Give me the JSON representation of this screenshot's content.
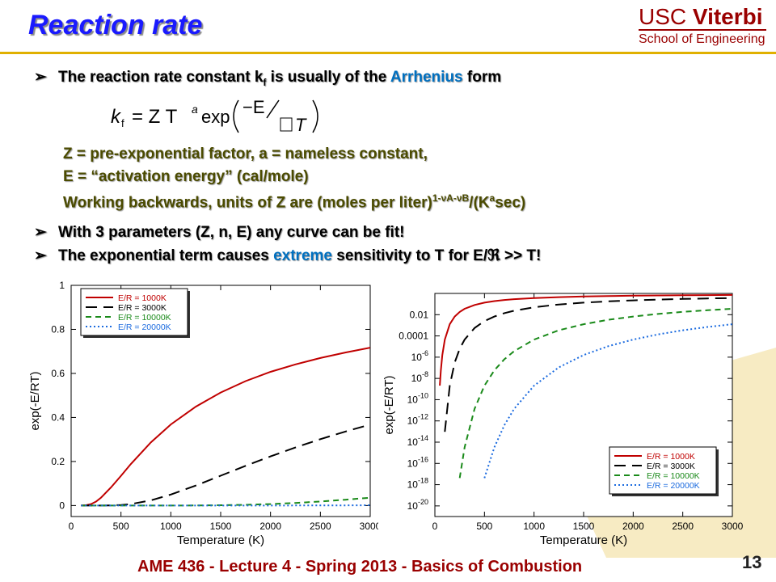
{
  "slide": {
    "title": "Reaction rate",
    "logo": {
      "usc": "USC",
      "viterbi": "Viterbi",
      "school": "School of Engineering"
    },
    "bullet1": {
      "pre": "The reaction rate constant k",
      "sub": "f",
      "mid": " is usually of the ",
      "highlight": "Arrhenius",
      "post": " form"
    },
    "equation": {
      "lhs": "k",
      "lhs_sub": "f",
      "eq": "= Z T",
      "a": "a",
      "exp": "exp",
      "num": "−E",
      "den": "T"
    },
    "line1": "Z = pre-exponential factor, a = nameless constant,",
    "line2": "E = “activation energy” (cal/mole)",
    "line3": {
      "pre": "Working backwards, units of Z are (moles per liter)",
      "sup": "1-νA-νB",
      "mid": "/(K",
      "sup2": "a",
      "post": "sec)"
    },
    "bullet2": "With 3 parameters (Z, n, E) any curve can be fit!",
    "bullet3": {
      "pre": "The exponential term causes ",
      "highlight": "extreme",
      "post": " sensitivity to T for E/ℜ >> T!"
    },
    "footer": "AME 436 - Lecture 4 - Spring 2013 - Basics of Combustion",
    "page_number": "13",
    "colors": {
      "title": "#1a1aff",
      "highlight": "#0070c0",
      "footer": "#9a0000",
      "rule": "#e0b000",
      "s1000": "#c00000",
      "s3000": "#000000",
      "s10000": "#1a8a1a",
      "s20000": "#1a6adf"
    }
  },
  "chart_data": [
    {
      "type": "line",
      "xlabel": "Temperature (K)",
      "ylabel": "exp(-E/RT)",
      "xlim": [
        0,
        3000
      ],
      "ylim": [
        -0.05,
        1.0
      ],
      "yscale": "linear",
      "xticks": [
        0,
        500,
        1000,
        1500,
        2000,
        2500,
        3000
      ],
      "yticks": [
        0,
        0.2,
        0.4,
        0.6,
        0.8,
        1
      ],
      "ytick_labels": [
        "0",
        "0.2",
        "0.4",
        "0.6",
        "0.8",
        "1"
      ],
      "legend": "top-left",
      "x": [
        100,
        150,
        200,
        250,
        300,
        400,
        500,
        600,
        800,
        1000,
        1250,
        1500,
        1750,
        2000,
        2250,
        2500,
        2750,
        3000
      ],
      "series": [
        {
          "name": "E/R = 1000K",
          "color": "#c00000",
          "dash": "",
          "values": [
            5e-05,
            0.0013,
            0.0067,
            0.018,
            0.036,
            0.082,
            0.135,
            0.189,
            0.287,
            0.368,
            0.449,
            0.513,
            0.565,
            0.607,
            0.641,
            0.67,
            0.695,
            0.717
          ]
        },
        {
          "name": "E/R = 3000K",
          "color": "#000000",
          "dash": "14,8",
          "values": [
            0.0,
            0.0,
            0.0,
            0.0,
            5e-05,
            0.00055,
            0.0025,
            0.0067,
            0.0235,
            0.0498,
            0.0907,
            0.1353,
            0.1801,
            0.2231,
            0.2636,
            0.3012,
            0.3359,
            0.3679
          ]
        },
        {
          "name": "E/R = 10000K",
          "color": "#1a8a1a",
          "dash": "7,5",
          "values": [
            0.0,
            0.0,
            0.0,
            0.0,
            0.0,
            0.0,
            0.0,
            0.0,
            4e-06,
            4.5e-05,
            0.00034,
            0.00127,
            0.0033,
            0.0067,
            0.0117,
            0.0183,
            0.0263,
            0.0357
          ]
        },
        {
          "name": "E/R = 20000K",
          "color": "#1a6adf",
          "dash": "2,3",
          "values": [
            0.0,
            0.0,
            0.0,
            0.0,
            0.0,
            0.0,
            0.0,
            0.0,
            0.0,
            0.0,
            0.0,
            1.6e-06,
            1.1e-05,
            4.5e-05,
            0.00014,
            0.00034,
            0.00069,
            0.00127
          ]
        }
      ]
    },
    {
      "type": "line",
      "xlabel": "Temperature (K)",
      "ylabel": "exp(-E/RT)",
      "xlim": [
        0,
        3000
      ],
      "ylim": [
        1e-21,
        1
      ],
      "yscale": "log",
      "xticks": [
        0,
        500,
        1000,
        1500,
        2000,
        2500,
        3000
      ],
      "yticks_exp": [
        -2,
        -4,
        -6,
        -8,
        -10,
        -12,
        -14,
        -16,
        -18,
        -20
      ],
      "ytick_labels": [
        {
          "base": "0.01",
          "sup": ""
        },
        {
          "base": "0.0001",
          "sup": ""
        },
        {
          "base": "10",
          "sup": "-6"
        },
        {
          "base": "10",
          "sup": "-8"
        },
        {
          "base": "10",
          "sup": "-10"
        },
        {
          "base": "10",
          "sup": "-12"
        },
        {
          "base": "10",
          "sup": "-14"
        },
        {
          "base": "10",
          "sup": "-16"
        },
        {
          "base": "10",
          "sup": "-18"
        },
        {
          "base": "10",
          "sup": "-20"
        }
      ],
      "legend": "bottom-right",
      "x": [
        50,
        60,
        75,
        100,
        150,
        200,
        250,
        300,
        400,
        500,
        600,
        700,
        800,
        1000,
        1250,
        1500,
        1750,
        2000,
        2250,
        2500,
        2750,
        3000
      ],
      "series": [
        {
          "name": "E/R = 1000K",
          "color": "#c00000",
          "dash": "",
          "values": [
            2.1e-09,
            5.8e-08,
            1.6e-06,
            4.5e-05,
            0.00127,
            0.0067,
            0.018,
            0.036,
            0.082,
            0.135,
            0.189,
            0.24,
            0.287,
            0.368,
            0.449,
            0.513,
            0.565,
            0.607,
            0.641,
            0.67,
            0.695,
            0.717
          ]
        },
        {
          "name": "E/R = 3000K",
          "color": "#000000",
          "dash": "14,8",
          "values": [
            null,
            null,
            null,
            9.4e-14,
            2.1e-09,
            3.1e-07,
            6.1e-06,
            4.5e-05,
            0.00055,
            0.0025,
            0.0067,
            0.0138,
            0.0235,
            0.0498,
            0.0907,
            0.1353,
            0.1801,
            0.2231,
            0.2636,
            0.3012,
            0.3359,
            0.3679
          ]
        },
        {
          "name": "E/R = 10000K",
          "color": "#1a8a1a",
          "dash": "7,5",
          "values": [
            null,
            null,
            null,
            null,
            null,
            null,
            4.2e-18,
            3.3e-15,
            1.4e-11,
            2.1e-09,
            5.8e-08,
            6.3e-07,
            3.7e-06,
            4.5e-05,
            0.00034,
            0.00127,
            0.0033,
            0.0067,
            0.0117,
            0.0183,
            0.0263,
            0.0357
          ]
        },
        {
          "name": "E/R = 20000K",
          "color": "#1a6adf",
          "dash": "2,3",
          "values": [
            null,
            null,
            null,
            null,
            null,
            null,
            null,
            null,
            null,
            4.2e-18,
            3.3e-15,
            3.9e-13,
            1.4e-11,
            2.1e-09,
            1.1e-07,
            1.6e-06,
            1.1e-05,
            4.5e-05,
            0.00014,
            0.00034,
            0.00069,
            0.00127
          ]
        }
      ]
    }
  ]
}
